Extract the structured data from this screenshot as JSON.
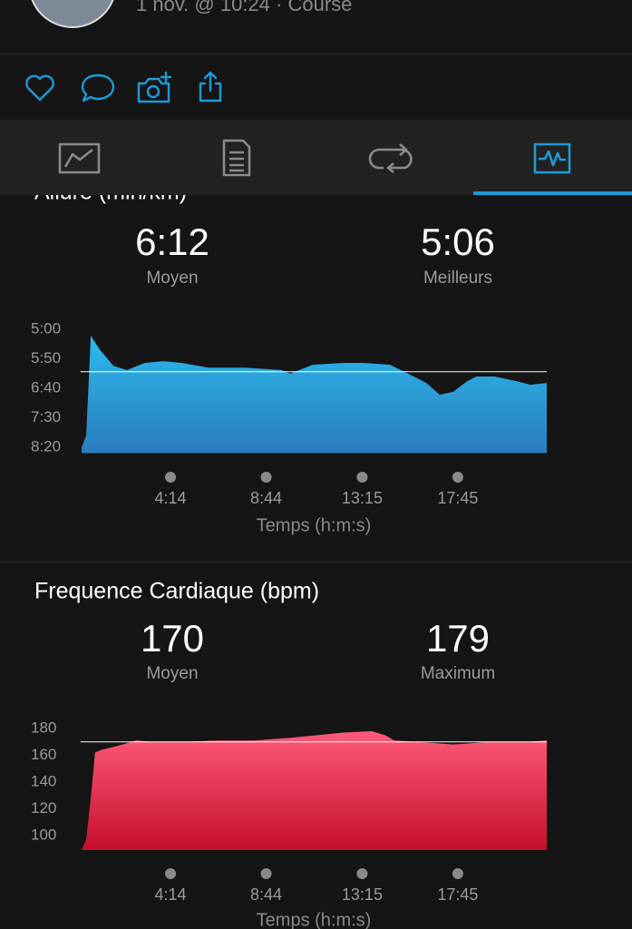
{
  "header": {
    "subtitle": "1 nov. @ 10:24 · Course"
  },
  "chart_data": [
    {
      "type": "area",
      "title": "Allure (min/km)",
      "average": {
        "value": 372,
        "label": "6:12"
      },
      "average_name": "Moyen",
      "best": "5:06",
      "best_name": "Meilleurs",
      "x_label": "Temps (h:m:s)",
      "x": [
        3,
        16,
        29,
        54,
        93,
        131,
        182,
        233,
        285,
        361,
        464,
        566,
        592,
        656,
        745,
        796,
        873,
        924,
        976,
        1014,
        1052,
        1091,
        1117,
        1168,
        1232,
        1270,
        1316
      ],
      "values": [
        500,
        480,
        311,
        334,
        362,
        369,
        357,
        354,
        357,
        365,
        365,
        369,
        375,
        360,
        357,
        357,
        360,
        375,
        391,
        411,
        406,
        388,
        380,
        380,
        388,
        394,
        391
      ],
      "xlim": [
        0,
        1316
      ],
      "ylim": [
        300,
        510
      ],
      "invert_y": true,
      "xticks": [
        {
          "value": 254,
          "label": "4:14"
        },
        {
          "value": 524,
          "label": "8:44"
        },
        {
          "value": 795,
          "label": "13:15"
        },
        {
          "value": 1065,
          "label": "17:45"
        }
      ],
      "yticks": [
        {
          "value": 300,
          "label": "5:00"
        },
        {
          "value": 350,
          "label": "5:50"
        },
        {
          "value": 400,
          "label": "6:40"
        },
        {
          "value": 450,
          "label": "7:30"
        },
        {
          "value": 500,
          "label": "8:20"
        }
      ],
      "colors": [
        "#2bbaec",
        "#2b7cbf"
      ]
    },
    {
      "type": "area",
      "title": "Frequence Cardiaque (bpm)",
      "average": 170,
      "average_name": "Moyen",
      "best": 179,
      "best_name": "Maximum",
      "x_label": "Temps (h:m:s)",
      "x": [
        3,
        16,
        29,
        41,
        59,
        105,
        157,
        208,
        285,
        387,
        490,
        592,
        669,
        745,
        822,
        860,
        886,
        950,
        1052,
        1155,
        1257,
        1316
      ],
      "values": [
        89,
        97,
        128,
        162,
        164,
        167,
        171,
        170,
        170,
        171,
        171,
        173,
        175,
        177,
        178,
        175,
        171,
        170,
        168,
        170,
        170,
        171
      ],
      "xlim": [
        0,
        1316
      ],
      "ylim": [
        89,
        180
      ],
      "invert_y": false,
      "xticks": [
        {
          "value": 254,
          "label": "4:14"
        },
        {
          "value": 524,
          "label": "8:44"
        },
        {
          "value": 795,
          "label": "13:15"
        },
        {
          "value": 1065,
          "label": "17:45"
        }
      ],
      "yticks": [
        100,
        120,
        140,
        160,
        180
      ],
      "colors": [
        "#ff5b7a",
        "#c40f2c"
      ]
    }
  ]
}
